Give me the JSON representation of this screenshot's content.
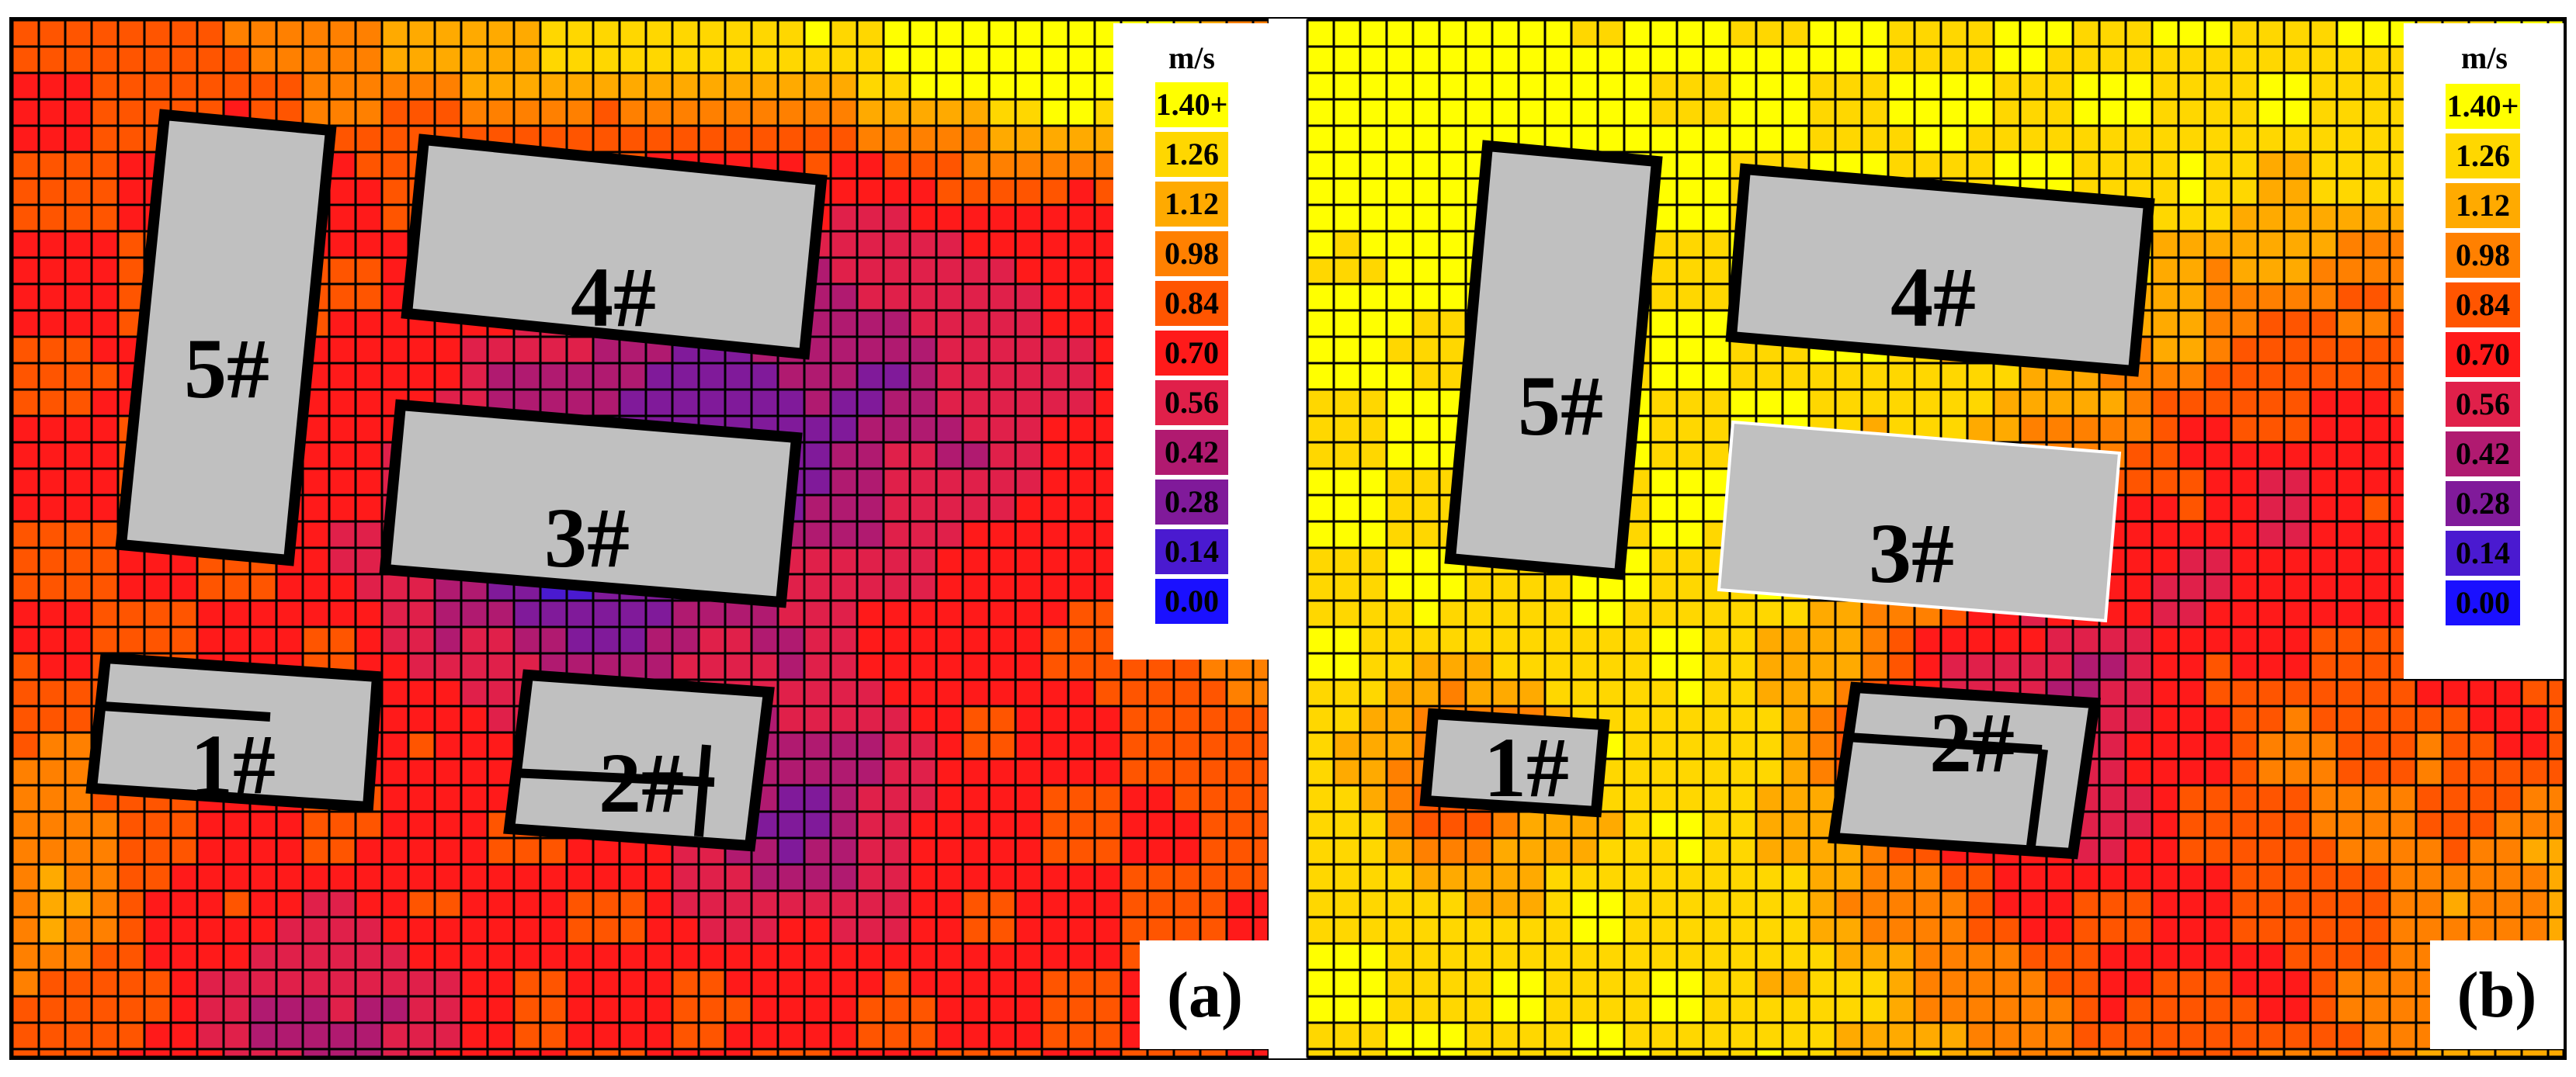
{
  "legend": {
    "unit": "m/s",
    "levels": [
      {
        "label": "1.40+",
        "color": "#ffff00"
      },
      {
        "label": "1.26",
        "color": "#ffd700"
      },
      {
        "label": "1.12",
        "color": "#ffaa00"
      },
      {
        "label": "0.98",
        "color": "#ff8000"
      },
      {
        "label": "0.84",
        "color": "#ff5500"
      },
      {
        "label": "0.70",
        "color": "#ff1a1a"
      },
      {
        "label": "0.56",
        "color": "#e0204a"
      },
      {
        "label": "0.42",
        "color": "#b01a70"
      },
      {
        "label": "0.28",
        "color": "#801a9a"
      },
      {
        "label": "0.14",
        "color": "#4a1ad0"
      },
      {
        "label": "0.00",
        "color": "#1a10ff"
      }
    ]
  },
  "panels": [
    {
      "tag": "(a)",
      "buildings": [
        {
          "label": "5#"
        },
        {
          "label": "4#"
        },
        {
          "label": "3#"
        },
        {
          "label": "1#"
        },
        {
          "label": "2#"
        }
      ]
    },
    {
      "tag": "(b)",
      "buildings": [
        {
          "label": "5#"
        },
        {
          "label": "4#"
        },
        {
          "label": "3#"
        },
        {
          "label": "1#"
        },
        {
          "label": "2#"
        }
      ]
    }
  ],
  "colors": {
    "building_fill": "#c0c0c0",
    "building_outline": "#000000",
    "grid_line": "#000000"
  }
}
